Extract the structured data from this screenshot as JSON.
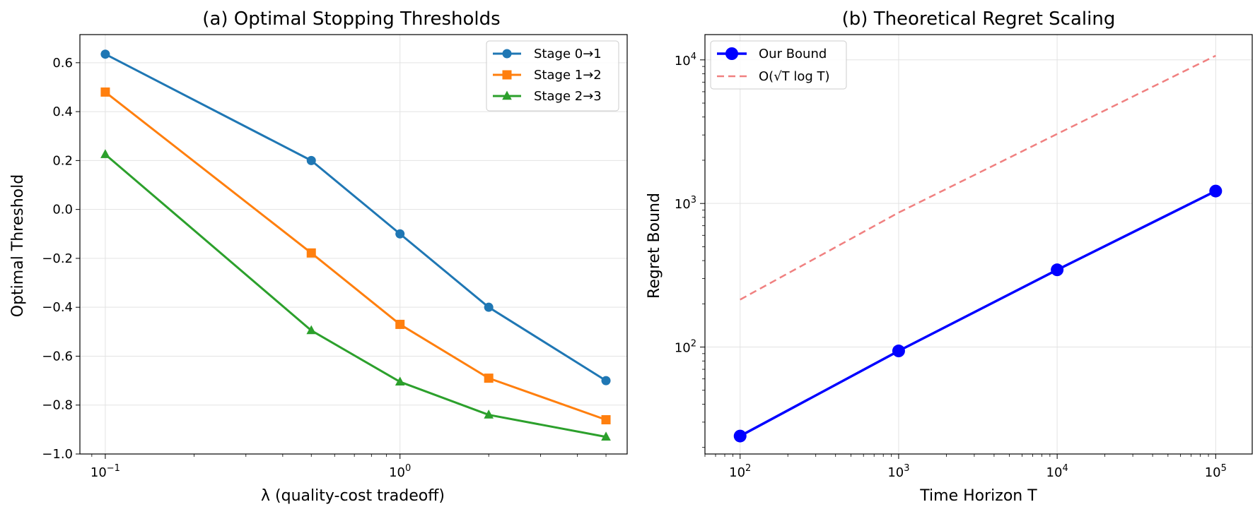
{
  "chart_data": [
    {
      "type": "line",
      "title": "(a) Optimal Stopping Thresholds",
      "xlabel": "λ (quality-cost tradeoff)",
      "ylabel": "Optimal Threshold",
      "xscale": "log",
      "xlim": [
        0.082,
        5.9
      ],
      "ylim": [
        -1.0,
        0.715
      ],
      "grid": true,
      "legend_position": "top-right",
      "x": [
        0.1,
        0.5,
        1.0,
        2.0,
        5.0
      ],
      "x_ticks": [
        {
          "value": 0.1,
          "base": "10",
          "exp": "−1"
        },
        {
          "value": 1.0,
          "base": "10",
          "exp": "0"
        }
      ],
      "y_ticks": [
        {
          "value": 0.6,
          "label": "0.6"
        },
        {
          "value": 0.4,
          "label": "0.4"
        },
        {
          "value": 0.2,
          "label": "0.2"
        },
        {
          "value": 0.0,
          "label": "0.0"
        },
        {
          "value": -0.2,
          "label": "−0.2"
        },
        {
          "value": -0.4,
          "label": "−0.4"
        },
        {
          "value": -0.6,
          "label": "−0.6"
        },
        {
          "value": -0.8,
          "label": "−0.8"
        },
        {
          "value": -1.0,
          "label": "−1.0"
        }
      ],
      "series": [
        {
          "name": "Stage 0→1",
          "color": "#1f77b4",
          "marker": "circle",
          "values": [
            0.635,
            0.2,
            -0.1,
            -0.4,
            -0.7
          ]
        },
        {
          "name": "Stage 1→2",
          "color": "#ff7f0e",
          "marker": "square",
          "values": [
            0.48,
            -0.178,
            -0.47,
            -0.69,
            -0.86
          ]
        },
        {
          "name": "Stage 2→3",
          "color": "#2ca02c",
          "marker": "triangle",
          "values": [
            0.225,
            -0.495,
            -0.705,
            -0.84,
            -0.93
          ]
        }
      ]
    },
    {
      "type": "line",
      "title": "(b) Theoretical Regret Scaling",
      "xlabel": "Time Horizon T",
      "ylabel": "Regret Bound",
      "xscale": "log",
      "yscale": "log",
      "xlim": [
        60,
        170000
      ],
      "ylim": [
        18,
        15000
      ],
      "grid": true,
      "legend_position": "top-left",
      "x": [
        100,
        1000,
        10000,
        100000
      ],
      "x_ticks": [
        {
          "value": 100,
          "base": "10",
          "exp": "2"
        },
        {
          "value": 1000,
          "base": "10",
          "exp": "3"
        },
        {
          "value": 10000,
          "base": "10",
          "exp": "4"
        },
        {
          "value": 100000,
          "base": "10",
          "exp": "5"
        }
      ],
      "y_ticks": [
        {
          "value": 100,
          "base": "10",
          "exp": "2"
        },
        {
          "value": 1000,
          "base": "10",
          "exp": "3"
        },
        {
          "value": 10000,
          "base": "10",
          "exp": "4"
        }
      ],
      "series": [
        {
          "name": "Our Bound",
          "color": "#0000ff",
          "marker": "circle",
          "style": "solid",
          "values": [
            24,
            94,
            345,
            1220
          ]
        },
        {
          "name": "O(√T log T)",
          "color": "#f08080",
          "marker": "none",
          "style": "dashed",
          "values": [
            214,
            864,
            3050,
            10700
          ]
        }
      ]
    }
  ]
}
